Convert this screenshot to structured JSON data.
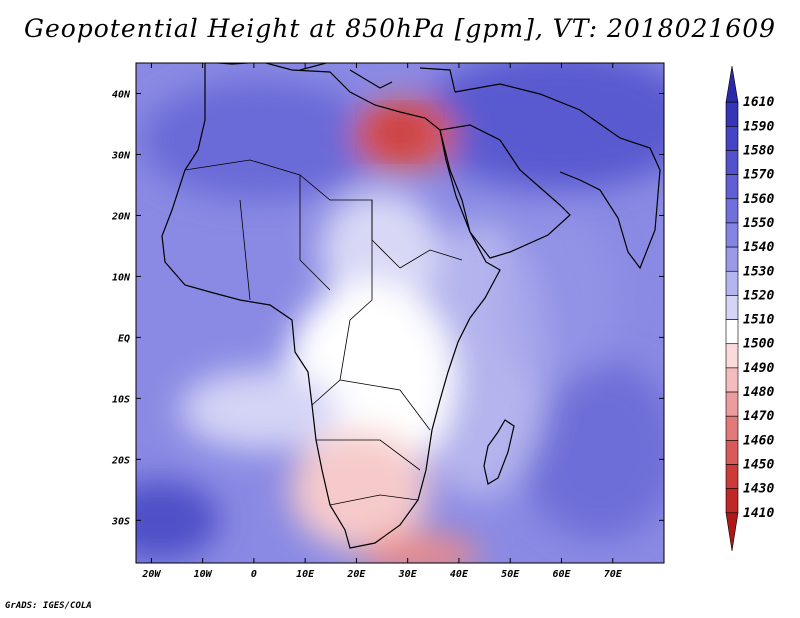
{
  "title": "Geopotential Height at 850hPa [gpm], VT: 2018021609",
  "credit": "GrADS: IGES/COLA",
  "map": {
    "lon_range": [
      -23,
      80
    ],
    "lat_range": [
      -37,
      45
    ],
    "lon_ticks": [
      {
        "value": -20,
        "label": "20W"
      },
      {
        "value": -10,
        "label": "10W"
      },
      {
        "value": 0,
        "label": "0"
      },
      {
        "value": 10,
        "label": "10E"
      },
      {
        "value": 20,
        "label": "20E"
      },
      {
        "value": 30,
        "label": "30E"
      },
      {
        "value": 40,
        "label": "40E"
      },
      {
        "value": 50,
        "label": "50E"
      },
      {
        "value": 60,
        "label": "60E"
      },
      {
        "value": 70,
        "label": "70E"
      }
    ],
    "lat_ticks": [
      {
        "value": 40,
        "label": "40N"
      },
      {
        "value": 30,
        "label": "30N"
      },
      {
        "value": 20,
        "label": "20N"
      },
      {
        "value": 10,
        "label": "10N"
      },
      {
        "value": 0,
        "label": "EQ"
      },
      {
        "value": -10,
        "label": "10S"
      },
      {
        "value": -20,
        "label": "20S"
      },
      {
        "value": -30,
        "label": "30S"
      }
    ]
  },
  "colorbar": {
    "levels": [
      "1610",
      "1590",
      "1580",
      "1570",
      "1560",
      "1550",
      "1540",
      "1530",
      "1520",
      "1510",
      "1500",
      "1490",
      "1480",
      "1470",
      "1460",
      "1450",
      "1430",
      "1410"
    ],
    "colors": [
      "#2a2aa8",
      "#3535b8",
      "#4444c4",
      "#5252cc",
      "#6060d4",
      "#7070dc",
      "#8484e2",
      "#9a9ae8",
      "#b4b4ee",
      "#d4d4f6",
      "#ffffff",
      "#fadada",
      "#f4bcbc",
      "#ec9c9c",
      "#e27a7a",
      "#d85a5a",
      "#cc3a3a",
      "#c02828",
      "#b01818"
    ]
  }
}
